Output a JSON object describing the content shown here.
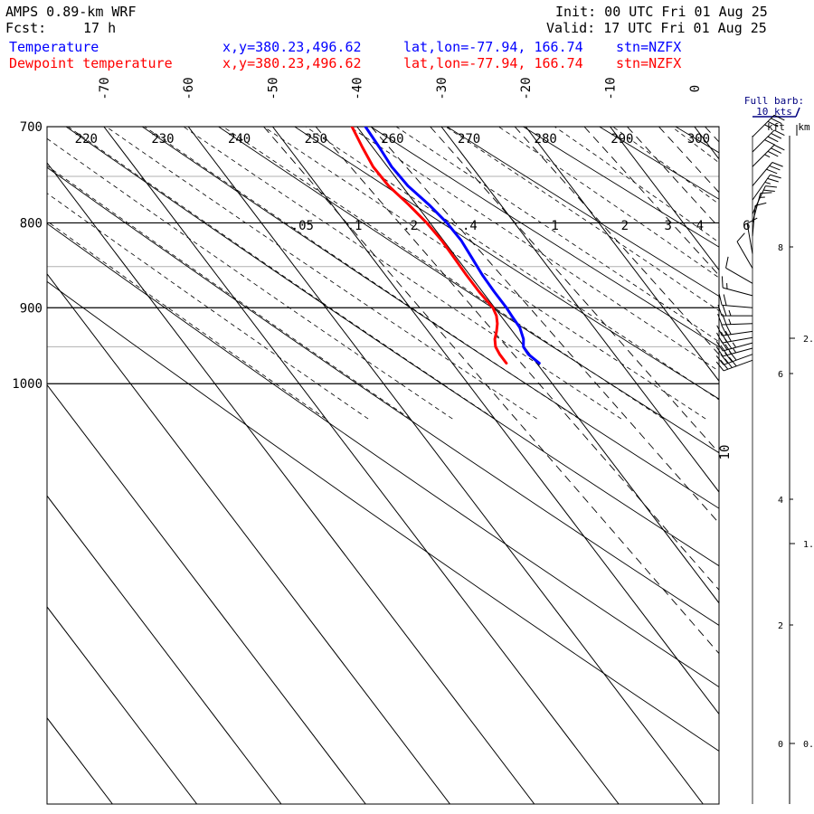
{
  "header": {
    "model": "AMPS 0.89-km WRF",
    "fcst_label": "Fcst:",
    "fcst_value": "17 h",
    "init": "Init: 00 UTC Fri 01 Aug 25",
    "valid": "Valid: 17 UTC Fri 01 Aug 25"
  },
  "legend": {
    "temperature": {
      "label": "Temperature",
      "xy": "x,y=380.23,496.62",
      "latlon": "lat,lon=-77.94, 166.74",
      "stn": "stn=NZFX",
      "color": "#0000ff"
    },
    "dewpoint": {
      "label": "Dewpoint temperature",
      "xy": "x,y=380.23,496.62",
      "latlon": "lat,lon=-77.94, 166.74",
      "stn": "stn=NZFX",
      "color": "#ff0000"
    }
  },
  "wind": {
    "barb_key_title": "Full barb:",
    "barb_key_value": "10 kts",
    "kft_label": "kft",
    "km_label": "km",
    "kft_ticks": [
      "8",
      "6",
      "4",
      "2",
      "0"
    ],
    "km_ticks": [
      "2.",
      "1.",
      "0."
    ],
    "stray_label": "10"
  },
  "chart_data": {
    "type": "line",
    "diagram": "skew-T log-P",
    "title": "",
    "y_axis": {
      "label": "",
      "unit": "hPa",
      "scale": "log",
      "reversed": true,
      "range": [
        1040,
        700
      ],
      "ticks": [
        700,
        800,
        900,
        1000
      ]
    },
    "x_axis": {
      "label": "",
      "unit": "deg C",
      "skewed": true,
      "ticks": [
        -70,
        -60,
        -50,
        -40,
        -30,
        -20,
        -10,
        0
      ]
    },
    "dry_adiabat_labels": [
      "220",
      "230",
      "240",
      "250",
      "260",
      "270",
      "280",
      "290",
      "300"
    ],
    "mixing_ratio_labels": [
      ".05",
      ".1",
      ".2",
      ".4",
      "1",
      "2",
      "3",
      "4",
      "6"
    ],
    "series": [
      {
        "name": "Temperature",
        "color": "#0000ff",
        "pressure": [
          972,
          960,
          950,
          940,
          925,
          910,
          900,
          880,
          860,
          840,
          820,
          800,
          780,
          760,
          740,
          720,
          700
        ],
        "temperature": [
          -39.7,
          -40.2,
          -40.1,
          -39.4,
          -38.8,
          -38.7,
          -38.6,
          -38.6,
          -38.5,
          -38.2,
          -37.9,
          -38.0,
          -38.5,
          -39.3,
          -39.5,
          -39.2,
          -39.0
        ]
      },
      {
        "name": "Dewpoint temperature",
        "color": "#ff0000",
        "pressure": [
          972,
          960,
          950,
          940,
          930,
          920,
          910,
          900,
          880,
          860,
          840,
          820,
          800,
          780,
          760,
          740,
          720,
          700
        ],
        "temperature": [
          -43.6,
          -43.6,
          -43.4,
          -42.8,
          -41.9,
          -41.1,
          -40.5,
          -40.2,
          -40.4,
          -40.4,
          -40.3,
          -40.2,
          -40.4,
          -40.9,
          -41.6,
          -41.7,
          -41.2,
          -40.6
        ]
      }
    ],
    "wind_profile": {
      "unit": "kts",
      "pressure": [
        968,
        960,
        952,
        945,
        938,
        930,
        920,
        910,
        900,
        885,
        870,
        852,
        835,
        815,
        800,
        790,
        775,
        760,
        740,
        725,
        710
      ],
      "direction": [
        250,
        250,
        255,
        255,
        260,
        262,
        268,
        270,
        275,
        285,
        300,
        330,
        350,
        5,
        15,
        25,
        35,
        40,
        45,
        45,
        45
      ],
      "speed": [
        40,
        40,
        38,
        35,
        33,
        30,
        28,
        25,
        22,
        15,
        12,
        12,
        12,
        12,
        15,
        20,
        25,
        30,
        35,
        40,
        35
      ]
    }
  }
}
